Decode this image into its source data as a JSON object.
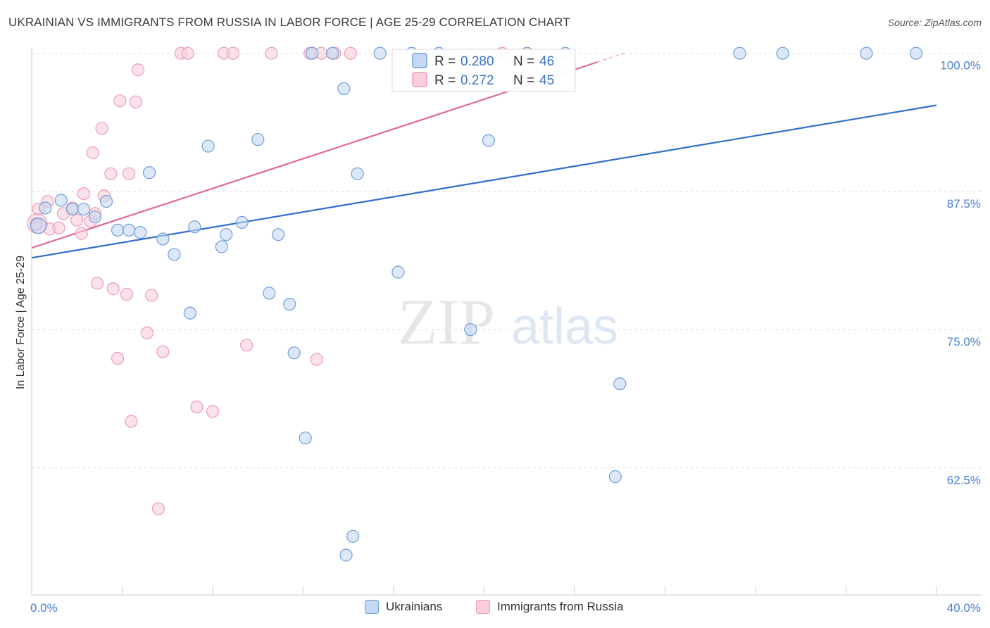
{
  "title": "UKRAINIAN VS IMMIGRANTS FROM RUSSIA IN LABOR FORCE | AGE 25-29 CORRELATION CHART",
  "source": "Source: ZipAtlas.com",
  "watermark": {
    "zip": "ZIP",
    "atlas": "atlas"
  },
  "chart_data": {
    "type": "scatter",
    "xlabel": "",
    "ylabel": "In Labor Force | Age 25-29",
    "xlim": [
      0,
      40
    ],
    "ylim": [
      51,
      101
    ],
    "x_tick_labels": [
      {
        "value": 0,
        "label": "0.0%"
      },
      {
        "value": 40,
        "label": "40.0%"
      }
    ],
    "y_tick_labels": [
      {
        "value": 100,
        "label": "100.0%"
      },
      {
        "value": 87.5,
        "label": "87.5%"
      },
      {
        "value": 75,
        "label": "75.0%"
      },
      {
        "value": 62.5,
        "label": "62.5%"
      }
    ],
    "grid": true,
    "legend_position": "top-center",
    "series": [
      {
        "name": "Ukrainians",
        "color": "#6f9fd8",
        "fill": "#c4d8f2",
        "line_color": "#2f6fcb",
        "R": "0.280",
        "N": "46",
        "trend": {
          "x": [
            0,
            40
          ],
          "y": [
            81.5,
            95.3
          ]
        },
        "points": [
          [
            0.2,
            84.5
          ],
          [
            0.6,
            86.0
          ],
          [
            1.3,
            86.7
          ],
          [
            1.8,
            85.9
          ],
          [
            2.3,
            85.9
          ],
          [
            2.8,
            85.2
          ],
          [
            3.3,
            86.6
          ],
          [
            3.8,
            84.0
          ],
          [
            4.3,
            84.0
          ],
          [
            4.8,
            83.8
          ],
          [
            5.2,
            89.2
          ],
          [
            5.8,
            83.2
          ],
          [
            6.3,
            81.8
          ],
          [
            7.0,
            76.5
          ],
          [
            7.2,
            84.3
          ],
          [
            7.8,
            91.6
          ],
          [
            8.4,
            82.5
          ],
          [
            8.6,
            83.6
          ],
          [
            9.3,
            84.7
          ],
          [
            10.0,
            92.2
          ],
          [
            10.5,
            78.3
          ],
          [
            10.9,
            83.6
          ],
          [
            11.4,
            77.3
          ],
          [
            11.6,
            72.9
          ],
          [
            12.1,
            65.2
          ],
          [
            12.4,
            100.0
          ],
          [
            13.3,
            100.0
          ],
          [
            13.8,
            96.8
          ],
          [
            13.9,
            54.6
          ],
          [
            14.2,
            56.3
          ],
          [
            14.4,
            89.1
          ],
          [
            15.4,
            100.0
          ],
          [
            16.2,
            80.2
          ],
          [
            16.8,
            100.0
          ],
          [
            18.0,
            100.0
          ],
          [
            19.4,
            75.0
          ],
          [
            20.2,
            92.1
          ],
          [
            21.9,
            100.0
          ],
          [
            23.6,
            100.0
          ],
          [
            25.8,
            61.7
          ],
          [
            26.0,
            70.1
          ],
          [
            31.3,
            100.0
          ],
          [
            33.2,
            100.0
          ],
          [
            36.9,
            100.0
          ],
          [
            39.1,
            100.0
          ]
        ]
      },
      {
        "name": "Immigrants from Russia",
        "color": "#ee9cb4",
        "fill": "#f8cfdb",
        "line_color": "#e06b92",
        "R": "0.272",
        "N": "45",
        "trend": {
          "x": [
            0,
            25
          ],
          "y": [
            82.4,
            99.2
          ]
        },
        "points": [
          [
            0.2,
            84.6
          ],
          [
            0.3,
            85.9
          ],
          [
            0.7,
            86.6
          ],
          [
            0.8,
            84.1
          ],
          [
            1.2,
            84.2
          ],
          [
            1.4,
            85.5
          ],
          [
            1.8,
            86.0
          ],
          [
            2.0,
            84.9
          ],
          [
            2.2,
            83.7
          ],
          [
            2.3,
            87.3
          ],
          [
            2.6,
            84.8
          ],
          [
            2.7,
            91.0
          ],
          [
            2.8,
            85.5
          ],
          [
            2.9,
            79.2
          ],
          [
            3.1,
            93.2
          ],
          [
            3.2,
            87.1
          ],
          [
            3.5,
            89.1
          ],
          [
            3.6,
            78.7
          ],
          [
            3.8,
            72.4
          ],
          [
            3.9,
            95.7
          ],
          [
            4.2,
            78.2
          ],
          [
            4.3,
            89.1
          ],
          [
            4.4,
            66.7
          ],
          [
            4.6,
            95.6
          ],
          [
            4.7,
            98.5
          ],
          [
            5.1,
            74.7
          ],
          [
            5.3,
            78.1
          ],
          [
            5.6,
            58.8
          ],
          [
            5.8,
            73.0
          ],
          [
            6.6,
            100.0
          ],
          [
            6.9,
            100.0
          ],
          [
            7.3,
            68.0
          ],
          [
            8.0,
            67.6
          ],
          [
            8.5,
            100.0
          ],
          [
            8.9,
            100.0
          ],
          [
            9.5,
            73.6
          ],
          [
            10.6,
            100.0
          ],
          [
            12.3,
            100.0
          ],
          [
            12.6,
            72.3
          ],
          [
            12.8,
            100.0
          ],
          [
            13.4,
            100.0
          ],
          [
            14.1,
            100.0
          ],
          [
            20.8,
            100.0
          ]
        ]
      }
    ]
  }
}
